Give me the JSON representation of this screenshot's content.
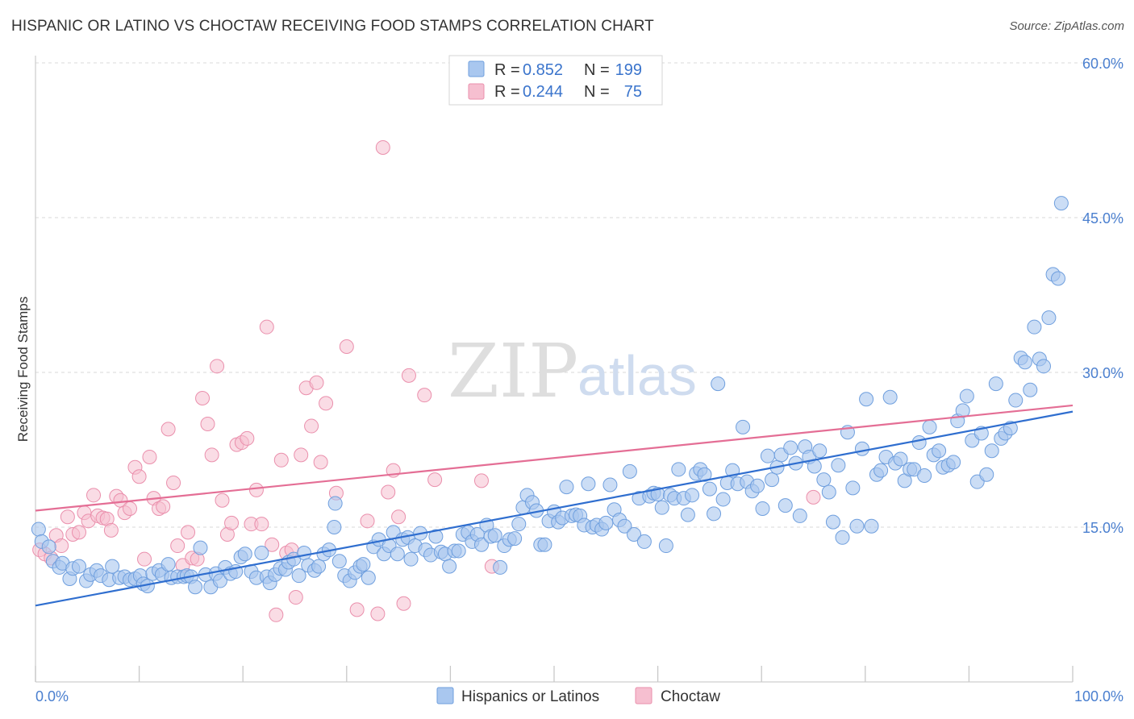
{
  "header": {
    "title": "HISPANIC OR LATINO VS CHOCTAW RECEIVING FOOD STAMPS CORRELATION CHART",
    "source": "Source: ZipAtlas.com"
  },
  "watermark": {
    "zip": "ZIP",
    "atlas": "atlas"
  },
  "colors": {
    "blue_fill": "#a9c7ef",
    "blue_stroke": "#6f9fde",
    "blue_line": "#2f6ecf",
    "pink_fill": "#f6bfd0",
    "pink_stroke": "#ea8fac",
    "pink_line": "#e46e95",
    "grid": "#d8d8d8",
    "tick_text": "#4a7fcf"
  },
  "stats_box": {
    "rows": [
      {
        "r_label": "R =",
        "r_value": "0.852",
        "n_label": "N =",
        "n_value": "199"
      },
      {
        "r_label": "R =",
        "r_value": "0.244",
        "n_label": "N =",
        "n_value": "75"
      }
    ]
  },
  "chart_data": {
    "type": "scatter",
    "title": "HISPANIC OR LATINO VS CHOCTAW RECEIVING FOOD STAMPS CORRELATION CHART",
    "xlabel": "",
    "ylabel": "Receiving Food Stamps",
    "xlim": [
      0,
      100
    ],
    "ylim": [
      0,
      60
    ],
    "x_tick_labels": [
      "0.0%",
      "100.0%"
    ],
    "y_ticks": [
      15,
      30,
      45,
      60
    ],
    "y_tick_labels": [
      "15.0%",
      "30.0%",
      "45.0%",
      "60.0%"
    ],
    "grid": true,
    "legend_position": "bottom-center",
    "series": [
      {
        "name": "Hispanics or Latinos",
        "color": "#a9c7ef",
        "R": 0.852,
        "N": 199,
        "trend": {
          "x": [
            0,
            100
          ],
          "y": [
            7.4,
            26.2
          ]
        },
        "points": [
          [
            0.3,
            14.8
          ],
          [
            0.6,
            13.6
          ],
          [
            1.3,
            13.1
          ],
          [
            1.7,
            11.7
          ],
          [
            2.3,
            11.1
          ],
          [
            2.6,
            11.5
          ],
          [
            3.3,
            10.0
          ],
          [
            3.6,
            11.0
          ],
          [
            4.2,
            11.2
          ],
          [
            4.9,
            9.8
          ],
          [
            5.3,
            10.4
          ],
          [
            5.9,
            10.8
          ],
          [
            6.3,
            10.3
          ],
          [
            7.1,
            9.9
          ],
          [
            7.4,
            11.2
          ],
          [
            8.1,
            10.1
          ],
          [
            8.6,
            10.2
          ],
          [
            9.1,
            9.9
          ],
          [
            9.6,
            10.0
          ],
          [
            10.1,
            10.3
          ],
          [
            10.4,
            9.5
          ],
          [
            10.8,
            9.3
          ],
          [
            11.3,
            10.5
          ],
          [
            11.9,
            10.8
          ],
          [
            12.2,
            10.4
          ],
          [
            12.8,
            11.4
          ],
          [
            13.1,
            10.1
          ],
          [
            13.7,
            10.2
          ],
          [
            14.3,
            10.2
          ],
          [
            14.6,
            10.3
          ],
          [
            15.0,
            10.2
          ],
          [
            15.4,
            9.2
          ],
          [
            15.9,
            13.0
          ],
          [
            16.4,
            10.4
          ],
          [
            16.9,
            9.2
          ],
          [
            17.4,
            10.5
          ],
          [
            17.8,
            9.8
          ],
          [
            18.3,
            11.1
          ],
          [
            18.8,
            10.5
          ],
          [
            19.3,
            10.7
          ],
          [
            19.8,
            12.1
          ],
          [
            20.2,
            12.4
          ],
          [
            20.8,
            10.7
          ],
          [
            21.3,
            10.1
          ],
          [
            21.8,
            12.5
          ],
          [
            22.3,
            10.2
          ],
          [
            22.6,
            9.6
          ],
          [
            23.1,
            10.4
          ],
          [
            23.6,
            11.0
          ],
          [
            24.1,
            10.9
          ],
          [
            24.4,
            11.6
          ],
          [
            24.9,
            11.9
          ],
          [
            25.4,
            10.3
          ],
          [
            25.9,
            12.5
          ],
          [
            26.3,
            11.3
          ],
          [
            26.9,
            10.8
          ],
          [
            27.3,
            11.2
          ],
          [
            27.8,
            12.4
          ],
          [
            28.3,
            12.8
          ],
          [
            28.8,
            15.0
          ],
          [
            28.9,
            17.3
          ],
          [
            29.3,
            11.7
          ],
          [
            29.8,
            10.3
          ],
          [
            30.3,
            9.8
          ],
          [
            30.8,
            10.6
          ],
          [
            31.3,
            11.2
          ],
          [
            31.6,
            11.4
          ],
          [
            32.1,
            10.1
          ],
          [
            32.6,
            13.1
          ],
          [
            33.1,
            13.8
          ],
          [
            33.6,
            12.4
          ],
          [
            34.1,
            13.2
          ],
          [
            34.5,
            14.5
          ],
          [
            34.9,
            12.4
          ],
          [
            35.4,
            13.8
          ],
          [
            35.9,
            14.0
          ],
          [
            36.2,
            11.9
          ],
          [
            36.6,
            13.2
          ],
          [
            37.1,
            14.4
          ],
          [
            37.6,
            12.8
          ],
          [
            38.1,
            12.3
          ],
          [
            38.6,
            14.1
          ],
          [
            39.1,
            12.6
          ],
          [
            39.5,
            12.4
          ],
          [
            39.9,
            11.2
          ],
          [
            40.4,
            12.7
          ],
          [
            40.8,
            12.7
          ],
          [
            41.2,
            14.3
          ],
          [
            41.7,
            14.5
          ],
          [
            42.1,
            13.6
          ],
          [
            42.6,
            14.3
          ],
          [
            43.0,
            13.3
          ],
          [
            43.5,
            15.2
          ],
          [
            43.9,
            14.1
          ],
          [
            44.3,
            14.2
          ],
          [
            44.8,
            11.1
          ],
          [
            45.2,
            13.2
          ],
          [
            45.7,
            13.8
          ],
          [
            46.2,
            13.9
          ],
          [
            46.6,
            15.3
          ],
          [
            47.0,
            16.9
          ],
          [
            47.4,
            18.1
          ],
          [
            47.9,
            17.4
          ],
          [
            48.3,
            16.6
          ],
          [
            48.7,
            13.3
          ],
          [
            49.1,
            13.3
          ],
          [
            49.5,
            15.6
          ],
          [
            50.0,
            16.5
          ],
          [
            50.4,
            15.5
          ],
          [
            50.8,
            15.9
          ],
          [
            51.2,
            18.9
          ],
          [
            51.7,
            16.1
          ],
          [
            52.1,
            16.2
          ],
          [
            52.5,
            16.1
          ],
          [
            52.9,
            15.2
          ],
          [
            53.3,
            19.2
          ],
          [
            53.7,
            15.0
          ],
          [
            54.1,
            15.2
          ],
          [
            54.6,
            14.8
          ],
          [
            55.0,
            15.4
          ],
          [
            55.4,
            19.1
          ],
          [
            55.8,
            16.7
          ],
          [
            56.3,
            15.7
          ],
          [
            56.8,
            15.1
          ],
          [
            57.3,
            20.4
          ],
          [
            57.7,
            14.3
          ],
          [
            58.2,
            17.8
          ],
          [
            58.7,
            13.6
          ],
          [
            59.2,
            18.0
          ],
          [
            59.6,
            18.3
          ],
          [
            60.0,
            18.2
          ],
          [
            60.4,
            16.9
          ],
          [
            60.8,
            13.2
          ],
          [
            61.2,
            18.1
          ],
          [
            61.6,
            17.8
          ],
          [
            62.0,
            20.6
          ],
          [
            62.5,
            17.8
          ],
          [
            62.9,
            16.2
          ],
          [
            63.3,
            18.1
          ],
          [
            63.7,
            20.2
          ],
          [
            64.1,
            20.6
          ],
          [
            64.5,
            20.1
          ],
          [
            65.0,
            18.7
          ],
          [
            65.4,
            16.3
          ],
          [
            65.8,
            28.9
          ],
          [
            66.3,
            17.7
          ],
          [
            66.7,
            19.3
          ],
          [
            67.2,
            20.5
          ],
          [
            67.7,
            19.2
          ],
          [
            68.2,
            24.7
          ],
          [
            68.6,
            19.4
          ],
          [
            69.1,
            18.5
          ],
          [
            69.6,
            19.0
          ],
          [
            70.1,
            16.8
          ],
          [
            70.6,
            21.9
          ],
          [
            71.0,
            19.6
          ],
          [
            71.5,
            20.8
          ],
          [
            71.9,
            22.0
          ],
          [
            72.3,
            17.1
          ],
          [
            72.8,
            22.7
          ],
          [
            73.3,
            21.2
          ],
          [
            73.7,
            16.1
          ],
          [
            74.2,
            22.8
          ],
          [
            74.6,
            21.8
          ],
          [
            75.1,
            20.9
          ],
          [
            75.6,
            22.4
          ],
          [
            76.0,
            19.6
          ],
          [
            76.5,
            18.4
          ],
          [
            76.9,
            15.5
          ],
          [
            77.4,
            21.0
          ],
          [
            77.8,
            14.0
          ],
          [
            78.3,
            24.2
          ],
          [
            78.8,
            18.8
          ],
          [
            79.2,
            15.1
          ],
          [
            79.7,
            22.6
          ],
          [
            80.1,
            27.4
          ],
          [
            80.6,
            15.1
          ],
          [
            81.1,
            20.1
          ],
          [
            81.5,
            20.5
          ],
          [
            82.0,
            21.8
          ],
          [
            82.4,
            27.6
          ],
          [
            82.9,
            21.2
          ],
          [
            83.4,
            21.6
          ],
          [
            83.8,
            19.5
          ],
          [
            84.3,
            20.6
          ],
          [
            84.7,
            20.6
          ],
          [
            85.2,
            23.2
          ],
          [
            85.7,
            20.0
          ],
          [
            86.2,
            24.7
          ],
          [
            86.6,
            22.0
          ],
          [
            87.1,
            22.4
          ],
          [
            87.5,
            20.8
          ],
          [
            88.0,
            21.0
          ],
          [
            88.5,
            21.3
          ],
          [
            88.9,
            25.3
          ],
          [
            89.4,
            26.3
          ],
          [
            89.8,
            27.7
          ],
          [
            90.3,
            23.4
          ],
          [
            90.8,
            19.4
          ],
          [
            91.2,
            24.1
          ],
          [
            91.7,
            20.1
          ],
          [
            92.2,
            22.4
          ],
          [
            92.6,
            28.9
          ],
          [
            93.1,
            23.6
          ],
          [
            93.5,
            24.1
          ],
          [
            94.0,
            24.6
          ],
          [
            94.5,
            27.3
          ],
          [
            95.0,
            31.4
          ],
          [
            95.4,
            31.0
          ],
          [
            95.9,
            28.3
          ],
          [
            96.3,
            34.4
          ],
          [
            96.8,
            31.3
          ],
          [
            97.2,
            30.6
          ],
          [
            97.7,
            35.3
          ],
          [
            98.1,
            39.5
          ],
          [
            98.6,
            39.1
          ],
          [
            98.9,
            46.4
          ]
        ]
      },
      {
        "name": "Choctaw",
        "color": "#f6bfd0",
        "R": 0.244,
        "N": 75,
        "trend": {
          "x": [
            0,
            100
          ],
          "y": [
            16.6,
            26.8
          ]
        },
        "points": [
          [
            0.4,
            12.8
          ],
          [
            0.9,
            12.4
          ],
          [
            1.5,
            12.0
          ],
          [
            2.0,
            14.2
          ],
          [
            2.5,
            13.2
          ],
          [
            3.1,
            16.0
          ],
          [
            3.6,
            14.3
          ],
          [
            4.2,
            14.5
          ],
          [
            4.7,
            16.4
          ],
          [
            5.1,
            15.6
          ],
          [
            5.6,
            18.1
          ],
          [
            6.0,
            16.1
          ],
          [
            6.5,
            15.9
          ],
          [
            6.9,
            15.8
          ],
          [
            7.3,
            14.7
          ],
          [
            7.8,
            18.0
          ],
          [
            8.2,
            17.6
          ],
          [
            8.6,
            16.4
          ],
          [
            9.1,
            16.8
          ],
          [
            9.6,
            20.8
          ],
          [
            10.0,
            19.9
          ],
          [
            10.5,
            11.9
          ],
          [
            11.0,
            21.8
          ],
          [
            11.4,
            17.8
          ],
          [
            11.9,
            16.8
          ],
          [
            12.3,
            17.0
          ],
          [
            12.8,
            24.5
          ],
          [
            13.3,
            19.3
          ],
          [
            13.7,
            13.2
          ],
          [
            14.2,
            11.3
          ],
          [
            14.7,
            14.5
          ],
          [
            15.1,
            12.0
          ],
          [
            15.6,
            11.9
          ],
          [
            16.1,
            27.5
          ],
          [
            16.6,
            25.0
          ],
          [
            17.0,
            22.0
          ],
          [
            17.5,
            30.6
          ],
          [
            18.0,
            17.6
          ],
          [
            18.5,
            14.3
          ],
          [
            18.9,
            15.4
          ],
          [
            19.4,
            23.0
          ],
          [
            19.9,
            23.2
          ],
          [
            20.4,
            23.6
          ],
          [
            20.8,
            15.3
          ],
          [
            21.3,
            18.6
          ],
          [
            21.8,
            15.3
          ],
          [
            22.3,
            34.4
          ],
          [
            22.8,
            13.3
          ],
          [
            23.2,
            6.5
          ],
          [
            23.7,
            21.5
          ],
          [
            24.2,
            12.5
          ],
          [
            24.7,
            12.8
          ],
          [
            25.1,
            8.2
          ],
          [
            25.6,
            22.0
          ],
          [
            26.1,
            28.5
          ],
          [
            26.6,
            24.8
          ],
          [
            27.1,
            29.0
          ],
          [
            27.5,
            21.3
          ],
          [
            28.0,
            27.0
          ],
          [
            29.0,
            18.3
          ],
          [
            30.0,
            32.5
          ],
          [
            31.0,
            7.0
          ],
          [
            32.0,
            15.6
          ],
          [
            33.0,
            6.6
          ],
          [
            33.5,
            51.8
          ],
          [
            34.0,
            18.4
          ],
          [
            34.5,
            20.5
          ],
          [
            35.0,
            16.0
          ],
          [
            35.5,
            7.6
          ],
          [
            36.0,
            29.7
          ],
          [
            37.5,
            27.8
          ],
          [
            38.5,
            19.6
          ],
          [
            43.0,
            19.5
          ],
          [
            44.0,
            11.2
          ],
          [
            75.0,
            17.9
          ]
        ]
      }
    ]
  },
  "legend": {
    "items": [
      {
        "label": "Hispanics or Latinos"
      },
      {
        "label": "Choctaw"
      }
    ]
  }
}
